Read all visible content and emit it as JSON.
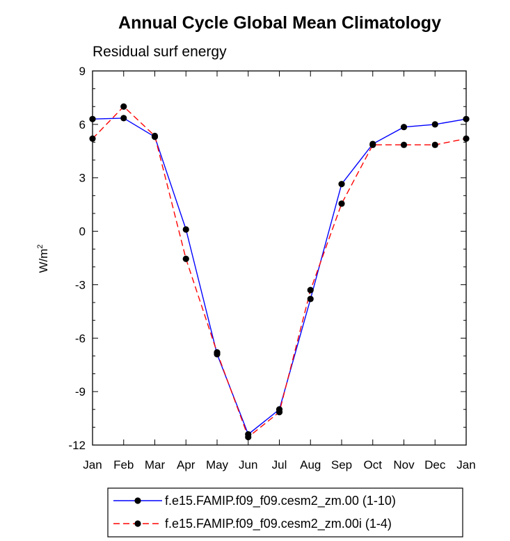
{
  "chart_data": {
    "type": "line",
    "title": "Annual Cycle Global Mean Climatology",
    "subtitle": "Residual surf energy",
    "xlabel": "",
    "ylabel_base": "W/m",
    "ylabel_sup": "2",
    "categories": [
      "Jan",
      "Feb",
      "Mar",
      "Apr",
      "May",
      "Jun",
      "Jul",
      "Aug",
      "Sep",
      "Oct",
      "Nov",
      "Dec",
      "Jan"
    ],
    "ylim": [
      -12,
      9
    ],
    "yticks": [
      -12,
      -9,
      -6,
      -3,
      0,
      3,
      6,
      9
    ],
    "ytick_labels": [
      "-12",
      "-9",
      "-6",
      "-3",
      "0",
      "3",
      "6",
      "9"
    ],
    "grid": false,
    "legend_position": "bottom",
    "series": [
      {
        "name": "f.e15.FAMIP.f09_f09.cesm2_zm.00 (1-10)",
        "color": "#0000ff",
        "line_style": "solid",
        "marker": "filled-circle",
        "values": [
          6.3,
          6.35,
          5.3,
          0.1,
          -6.9,
          -11.4,
          -10.0,
          -3.8,
          2.65,
          4.9,
          5.85,
          6.0,
          6.3
        ]
      },
      {
        "name": "f.e15.FAMIP.f09_f09.cesm2_zm.00i (1-4)",
        "color": "#ff0000",
        "line_style": "dashed",
        "marker": "filled-circle",
        "values": [
          5.2,
          7.0,
          5.35,
          -1.55,
          -6.8,
          -11.55,
          -10.15,
          -3.3,
          1.55,
          4.85,
          4.85,
          4.85,
          5.2
        ]
      }
    ]
  }
}
